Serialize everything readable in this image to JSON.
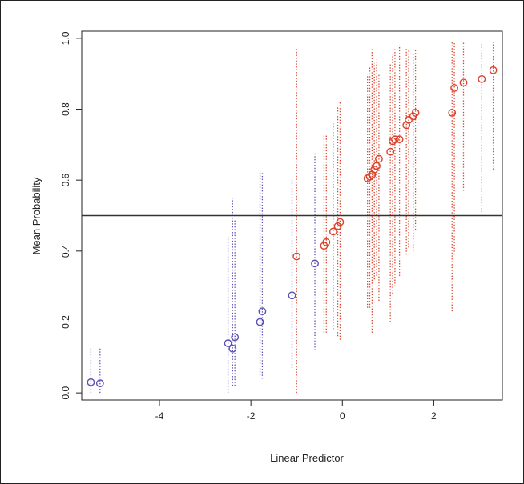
{
  "chart_data": {
    "type": "scatter",
    "title": "",
    "xlabel": "Linear Predictor",
    "ylabel": "Mean Probability",
    "xlim": [
      -5.7,
      3.5
    ],
    "ylim": [
      -0.02,
      1.02
    ],
    "x_ticks": [
      -4,
      -2,
      0,
      2
    ],
    "x_tick_labels": [
      "-4",
      "-2",
      "0",
      "2"
    ],
    "y_ticks": [
      0.0,
      0.2,
      0.4,
      0.6,
      0.8,
      1.0
    ],
    "y_tick_labels": [
      "0.0",
      "0.2",
      "0.4",
      "0.6",
      "0.8",
      "1.0"
    ],
    "reference_line_y": 0.5,
    "grid": false,
    "colors": {
      "below": "#5a4fb3",
      "above": "#d9432d",
      "reference": "#333333",
      "axis": "#222222"
    },
    "series": [
      {
        "color_key": "below",
        "points": [
          {
            "x": -5.5,
            "y": 0.03,
            "low": 0.0,
            "high": 0.13
          },
          {
            "x": -5.3,
            "y": 0.027,
            "low": 0.0,
            "high": 0.13
          },
          {
            "x": -2.5,
            "y": 0.14,
            "low": 0.0,
            "high": 0.44
          },
          {
            "x": -2.4,
            "y": 0.125,
            "low": 0.02,
            "high": 0.55
          },
          {
            "x": -2.35,
            "y": 0.157,
            "low": 0.02,
            "high": 0.49
          },
          {
            "x": -1.8,
            "y": 0.2,
            "low": 0.05,
            "high": 0.63
          },
          {
            "x": -1.75,
            "y": 0.23,
            "low": 0.04,
            "high": 0.62
          },
          {
            "x": -1.1,
            "y": 0.275,
            "low": 0.07,
            "high": 0.6
          },
          {
            "x": -0.6,
            "y": 0.365,
            "low": 0.12,
            "high": 0.68
          }
        ]
      },
      {
        "color_key": "above",
        "points": [
          {
            "x": -1.0,
            "y": 0.385,
            "low": 0.0,
            "high": 0.97
          },
          {
            "x": -0.4,
            "y": 0.415,
            "low": 0.17,
            "high": 0.73
          },
          {
            "x": -0.35,
            "y": 0.425,
            "low": 0.17,
            "high": 0.73
          },
          {
            "x": -0.2,
            "y": 0.455,
            "low": 0.18,
            "high": 0.76
          },
          {
            "x": -0.1,
            "y": 0.47,
            "low": 0.16,
            "high": 0.81
          },
          {
            "x": -0.05,
            "y": 0.482,
            "low": 0.15,
            "high": 0.82
          },
          {
            "x": 0.55,
            "y": 0.605,
            "low": 0.24,
            "high": 0.9
          },
          {
            "x": 0.6,
            "y": 0.61,
            "low": 0.24,
            "high": 0.92
          },
          {
            "x": 0.65,
            "y": 0.615,
            "low": 0.17,
            "high": 0.97
          },
          {
            "x": 0.7,
            "y": 0.63,
            "low": 0.32,
            "high": 0.93
          },
          {
            "x": 0.75,
            "y": 0.64,
            "low": 0.33,
            "high": 0.94
          },
          {
            "x": 0.8,
            "y": 0.66,
            "low": 0.26,
            "high": 0.9
          },
          {
            "x": 1.05,
            "y": 0.68,
            "low": 0.2,
            "high": 0.93
          },
          {
            "x": 1.1,
            "y": 0.71,
            "low": 0.28,
            "high": 0.96
          },
          {
            "x": 1.15,
            "y": 0.715,
            "low": 0.3,
            "high": 0.97
          },
          {
            "x": 1.25,
            "y": 0.715,
            "low": 0.33,
            "high": 0.98
          },
          {
            "x": 1.4,
            "y": 0.755,
            "low": 0.39,
            "high": 0.97
          },
          {
            "x": 1.45,
            "y": 0.77,
            "low": 0.41,
            "high": 0.97
          },
          {
            "x": 1.55,
            "y": 0.78,
            "low": 0.4,
            "high": 0.96
          },
          {
            "x": 1.6,
            "y": 0.79,
            "low": 0.46,
            "high": 0.97
          },
          {
            "x": 2.4,
            "y": 0.79,
            "low": 0.23,
            "high": 0.99
          },
          {
            "x": 2.45,
            "y": 0.86,
            "low": 0.39,
            "high": 0.99
          },
          {
            "x": 2.65,
            "y": 0.875,
            "low": 0.57,
            "high": 0.99
          },
          {
            "x": 3.05,
            "y": 0.885,
            "low": 0.51,
            "high": 0.99
          },
          {
            "x": 3.3,
            "y": 0.91,
            "low": 0.63,
            "high": 0.99
          }
        ]
      }
    ]
  }
}
